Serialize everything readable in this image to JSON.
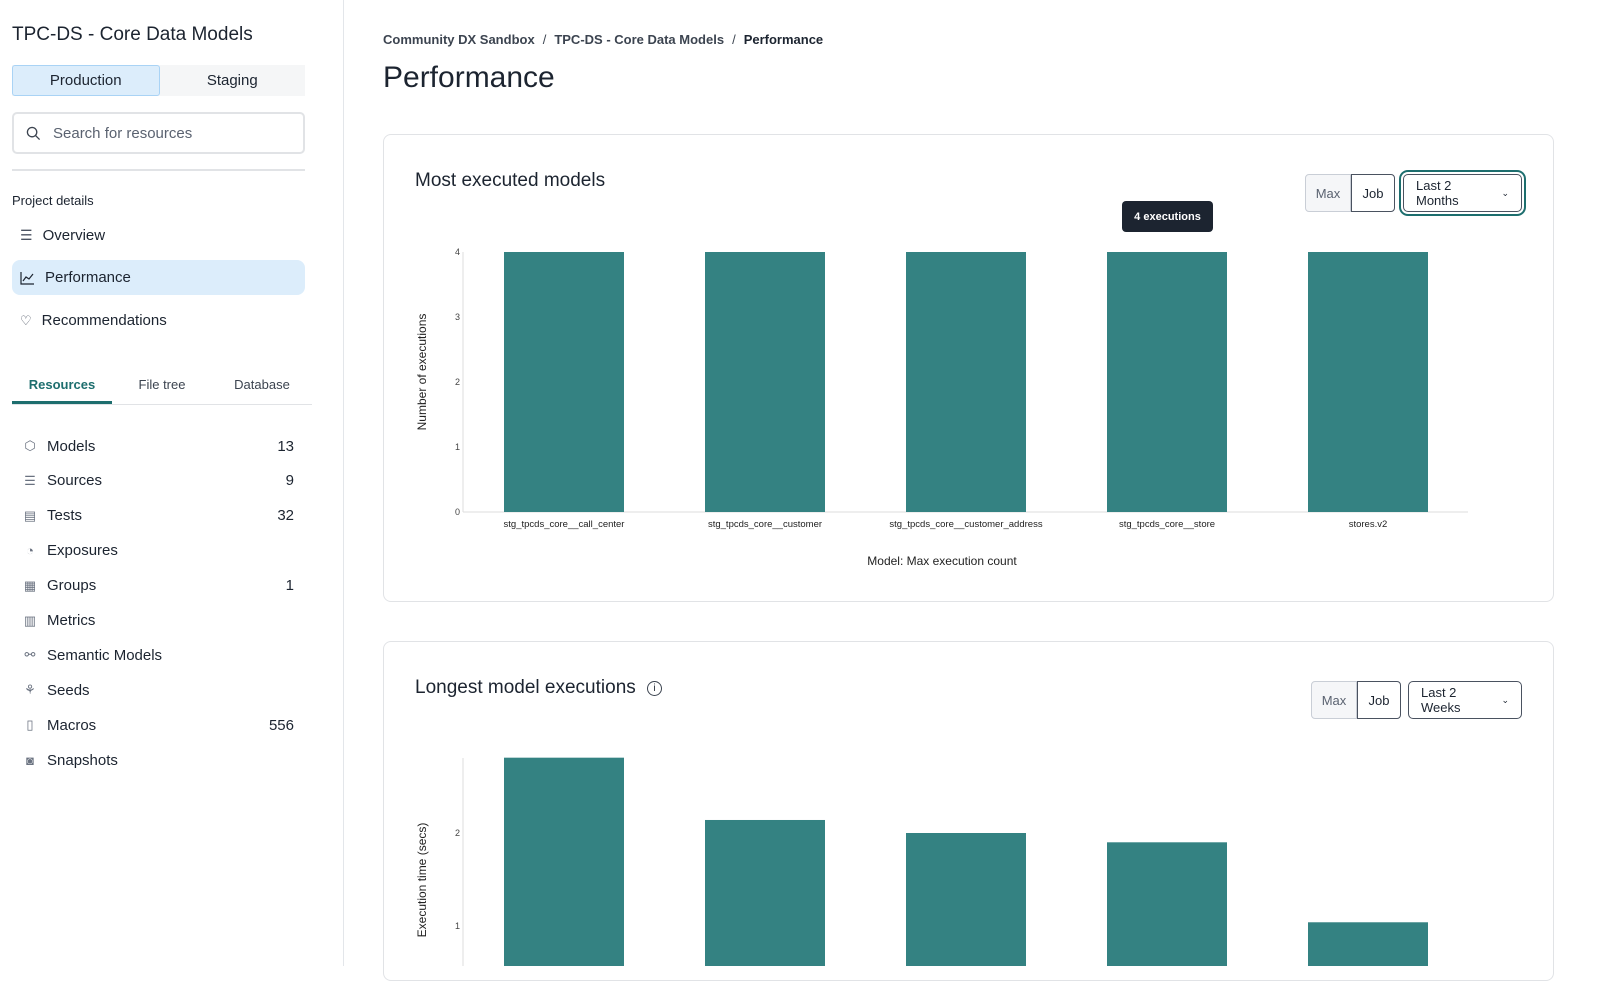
{
  "sidebar": {
    "project_title": "TPC-DS - Core Data Models",
    "environments": [
      "Production",
      "Staging"
    ],
    "search_placeholder": "Search for resources",
    "section_label": "Project details",
    "nav": [
      {
        "label": "Overview",
        "icon": "list-icon"
      },
      {
        "label": "Performance",
        "icon": "chart-line-icon"
      },
      {
        "label": "Recommendations",
        "icon": "lightbulb-icon"
      }
    ],
    "tabs": [
      "Resources",
      "File tree",
      "Database"
    ],
    "resources": [
      {
        "label": "Models",
        "count": "13",
        "icon": "cube-icon"
      },
      {
        "label": "Sources",
        "count": "9",
        "icon": "database-icon"
      },
      {
        "label": "Tests",
        "count": "32",
        "icon": "clipboard-icon"
      },
      {
        "label": "Exposures",
        "count": "",
        "icon": "gauge-icon"
      },
      {
        "label": "Groups",
        "count": "1",
        "icon": "grid-icon"
      },
      {
        "label": "Metrics",
        "count": "",
        "icon": "bar-chart-icon"
      },
      {
        "label": "Semantic Models",
        "count": "",
        "icon": "nodes-icon"
      },
      {
        "label": "Seeds",
        "count": "",
        "icon": "seedling-icon"
      },
      {
        "label": "Macros",
        "count": "556",
        "icon": "file-icon"
      },
      {
        "label": "Snapshots",
        "count": "",
        "icon": "camera-icon"
      }
    ]
  },
  "breadcrumb": [
    "Community DX Sandbox",
    "TPC-DS - Core Data Models",
    "Performance"
  ],
  "page_title": "Performance",
  "accent": "#348282",
  "cards": [
    {
      "title": "Most executed models",
      "toggle": [
        "Max",
        "Job"
      ],
      "range": "Last 2 Months",
      "tooltip": "4 executions"
    },
    {
      "title": "Longest model executions",
      "toggle": [
        "Max",
        "Job"
      ],
      "range": "Last 2 Weeks"
    }
  ],
  "chart_data": [
    {
      "type": "bar",
      "categories": [
        "stg_tpcds_core__call_center",
        "stg_tpcds_core__customer",
        "stg_tpcds_core__customer_address",
        "stg_tpcds_core__store",
        "stores.v2"
      ],
      "values": [
        4,
        4,
        4,
        4,
        4
      ],
      "xlabel": "Model: Max execution count",
      "ylabel": "Number of executions",
      "ylim": [
        0,
        4
      ],
      "yticks": [
        "0",
        "1",
        "2",
        "3",
        "4"
      ]
    },
    {
      "type": "bar",
      "values": [
        2.81,
        2.14,
        2.0,
        1.9,
        1.04
      ],
      "ylabel": "Execution time (secs)",
      "yticks": [
        "1",
        "2"
      ]
    }
  ]
}
